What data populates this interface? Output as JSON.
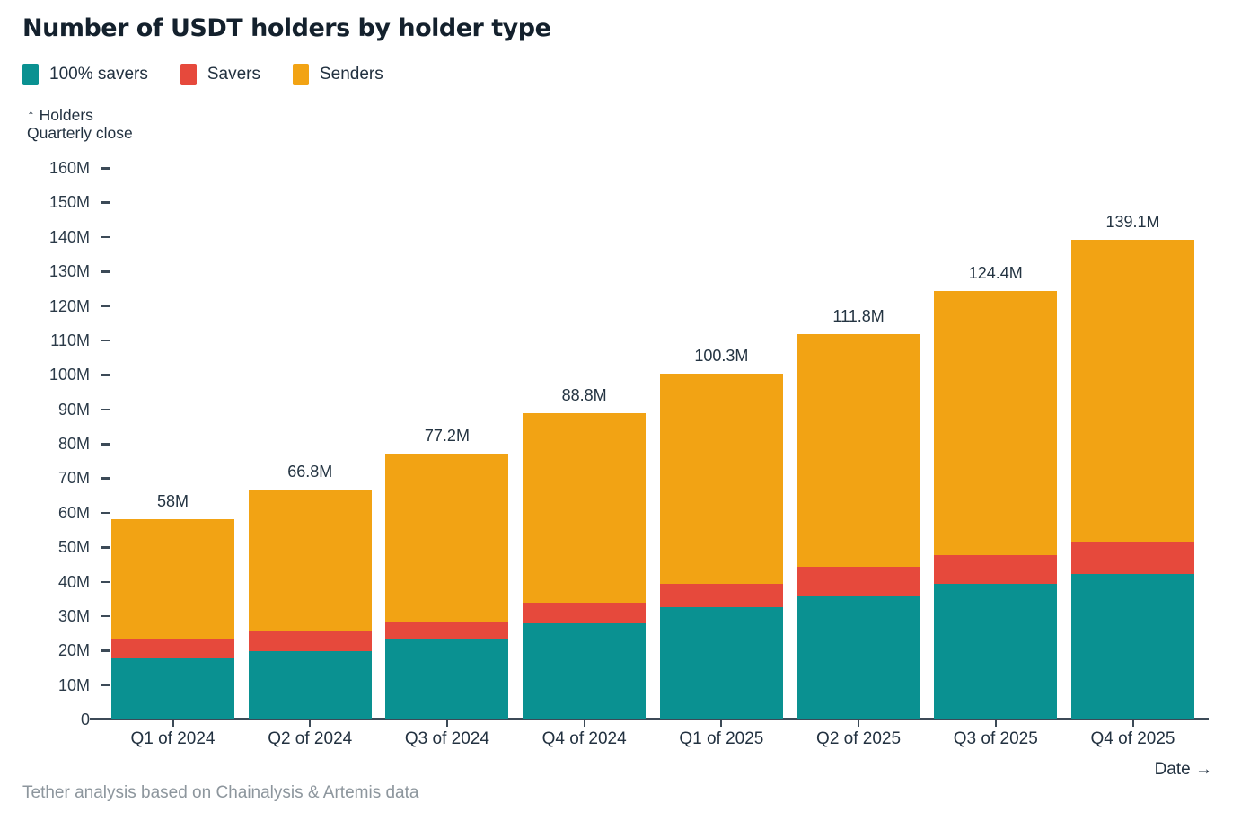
{
  "title": "Number of USDT holders by holder type",
  "axis": {
    "y_caption_line1": "↑ Holders",
    "y_caption_line2": "Quarterly close",
    "x_caption": "Date →"
  },
  "footer": "Tether analysis based on Chainalysis & Artemis data",
  "colors": {
    "savers100": "#0a9191",
    "savers": "#e6493c",
    "senders": "#f2a314",
    "axis": "#3c4a57",
    "text": "#223140",
    "footer_text": "#8d969d"
  },
  "chart_data": {
    "type": "bar",
    "stacked": true,
    "title": "Number of USDT holders by holder type",
    "xlabel": "Date",
    "ylabel": "Holders, Quarterly close",
    "ylim": [
      0,
      160
    ],
    "grid": false,
    "legend_position": "top-left",
    "categories": [
      "Q1 of 2024",
      "Q2 of 2024",
      "Q3 of 2024",
      "Q4 of 2024",
      "Q1 of 2025",
      "Q2 of 2025",
      "Q3 of 2025",
      "Q4 of 2025"
    ],
    "series": [
      {
        "name": "100% savers",
        "color": "#0a9191",
        "values": [
          17.6,
          19.7,
          23.5,
          28.0,
          32.5,
          35.9,
          39.4,
          42.3
        ]
      },
      {
        "name": "Savers",
        "color": "#e6493c",
        "values": [
          5.9,
          5.8,
          5.0,
          5.8,
          6.9,
          8.5,
          8.3,
          9.2
        ]
      },
      {
        "name": "Senders",
        "color": "#f2a314",
        "values": [
          34.5,
          41.3,
          48.7,
          55.0,
          60.9,
          67.4,
          76.7,
          87.6
        ]
      }
    ],
    "totals": [
      58,
      66.8,
      77.2,
      88.8,
      100.3,
      111.8,
      124.4,
      139.1
    ],
    "total_labels": [
      "58M",
      "66.8M",
      "77.2M",
      "88.8M",
      "100.3M",
      "111.8M",
      "124.4M",
      "139.1M"
    ],
    "ytick_values": [
      0,
      10,
      20,
      30,
      40,
      50,
      60,
      70,
      80,
      90,
      100,
      110,
      120,
      130,
      140,
      150,
      160
    ],
    "ytick_labels": [
      "0",
      "10M",
      "20M",
      "30M",
      "40M",
      "50M",
      "60M",
      "70M",
      "80M",
      "90M",
      "100M",
      "110M",
      "120M",
      "130M",
      "140M",
      "150M",
      "160M"
    ]
  }
}
